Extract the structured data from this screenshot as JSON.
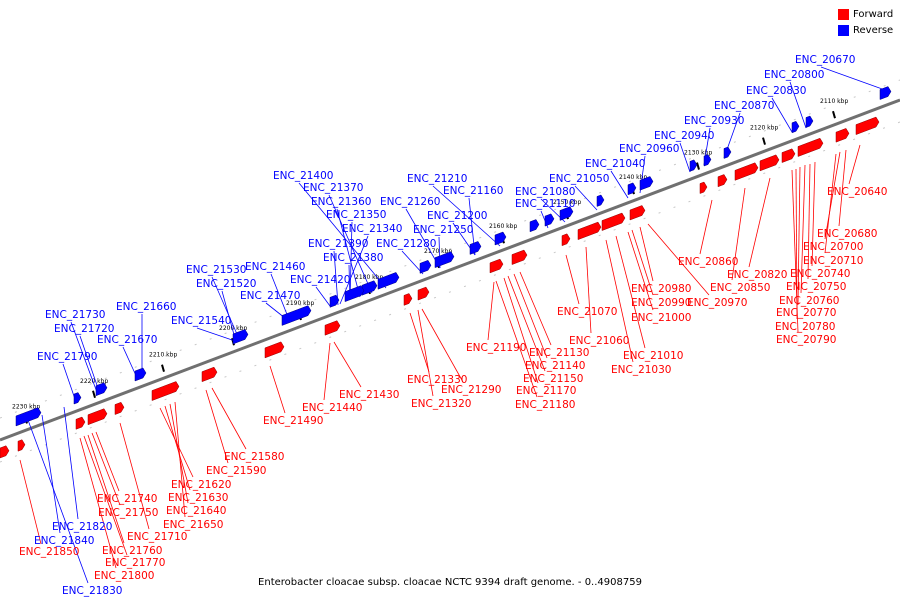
{
  "colors": {
    "forward": "#ff0000",
    "reverse": "#0000ff",
    "axis": "#606060",
    "tick": "#000000"
  },
  "legend": [
    {
      "label": "Forward",
      "color": "#ff0000"
    },
    {
      "label": "Reverse",
      "color": "#0000ff"
    }
  ],
  "caption": "Enterobacter cloacae subsp. cloacae NCTC 9394 draft genome. - 0..4908759",
  "ticks": [
    "2110 kbp",
    "2120 kbp",
    "2130 kbp",
    "2140 kbp",
    "2150 kbp",
    "2160 kbp",
    "2170 kbp",
    "2180 kbp",
    "2190 kbp",
    "2200 kbp",
    "2210 kbp",
    "2220 kbp",
    "2230 kbp"
  ],
  "reverse_labels": [
    "ENC_20670",
    "ENC_20800",
    "ENC_20830",
    "ENC_20870",
    "ENC_20930",
    "ENC_20940",
    "ENC_20960",
    "ENC_21040",
    "ENC_21050",
    "ENC_21080",
    "ENC_21110",
    "ENC_21210",
    "ENC_21160",
    "ENC_21260",
    "ENC_21200",
    "ENC_21250",
    "ENC_21280",
    "ENC_21400",
    "ENC_21370",
    "ENC_21360",
    "ENC_21350",
    "ENC_21340",
    "ENC_21390",
    "ENC_21380",
    "ENC_21420",
    "ENC_21460",
    "ENC_21470",
    "ENC_21530",
    "ENC_21520",
    "ENC_21540",
    "ENC_21660",
    "ENC_21670",
    "ENC_21730",
    "ENC_21720",
    "ENC_21790",
    "ENC_21820",
    "ENC_21840",
    "ENC_21830"
  ],
  "forward_labels": [
    "ENC_20640",
    "ENC_20680",
    "ENC_20700",
    "ENC_20710",
    "ENC_20740",
    "ENC_20750",
    "ENC_20760",
    "ENC_20770",
    "ENC_20780",
    "ENC_20790",
    "ENC_20820",
    "ENC_20850",
    "ENC_20860",
    "ENC_20970",
    "ENC_20980",
    "ENC_20990",
    "ENC_21000",
    "ENC_21010",
    "ENC_21030",
    "ENC_21060",
    "ENC_21070",
    "ENC_21130",
    "ENC_21140",
    "ENC_21150",
    "ENC_21170",
    "ENC_21180",
    "ENC_21190",
    "ENC_21290",
    "ENC_21320",
    "ENC_21330",
    "ENC_21430",
    "ENC_21440",
    "ENC_21490",
    "ENC_21580",
    "ENC_21590",
    "ENC_21620",
    "ENC_21630",
    "ENC_21640",
    "ENC_21650",
    "ENC_21710",
    "ENC_21740",
    "ENC_21750",
    "ENC_21760",
    "ENC_21770",
    "ENC_21800",
    "ENC_21850"
  ]
}
